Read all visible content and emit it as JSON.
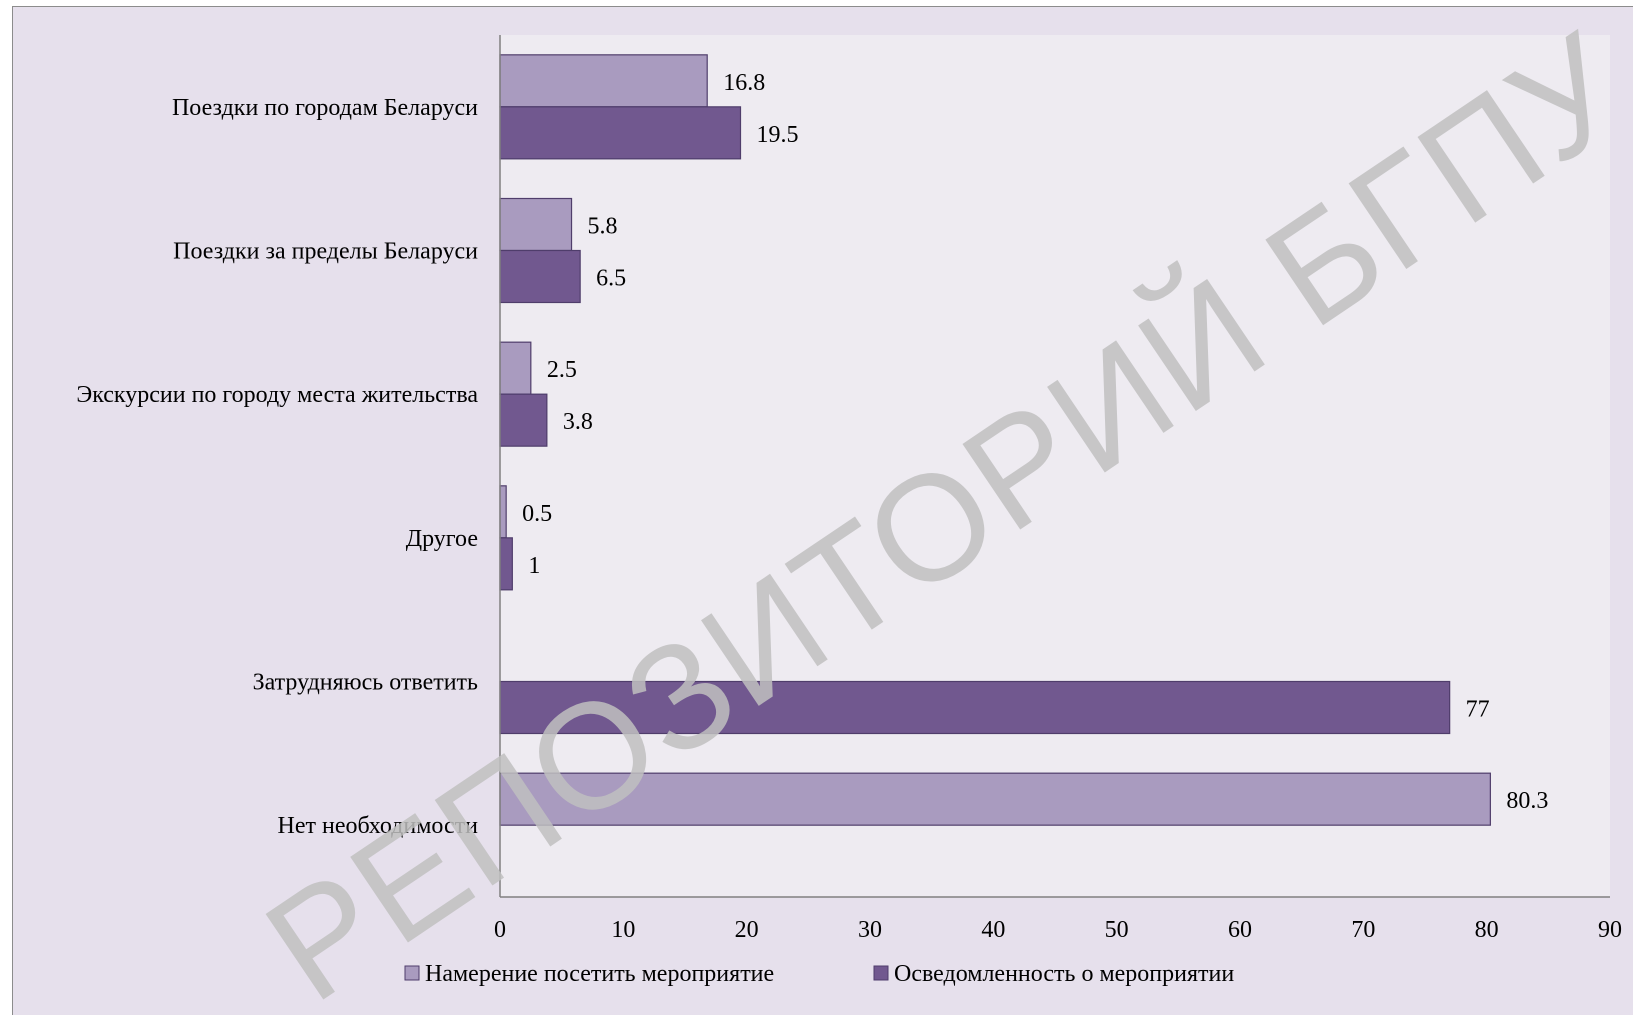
{
  "chart_data": {
    "type": "bar",
    "orientation": "horizontal",
    "categories": [
      "Поездки по городам Беларуси",
      "Поездки за пределы Беларуси",
      "Экскурсии по городу места жительства",
      "Другое",
      "Затрудняюсь ответить",
      "Нет необходимости"
    ],
    "series": [
      {
        "name": "Намерение посетить мероприятие",
        "color": "#a99bbf",
        "values": [
          16.8,
          5.8,
          2.5,
          0.5,
          null,
          80.3
        ],
        "labels": [
          "16.8",
          "5.8",
          "2.5",
          "0.5",
          "",
          "80.3"
        ]
      },
      {
        "name": "Осведомленность о мероприятии",
        "color": "#71588f",
        "values": [
          19.5,
          6.5,
          3.8,
          1,
          77,
          null
        ],
        "labels": [
          "19.5",
          "6.5",
          "3.8",
          "1",
          "77",
          ""
        ]
      }
    ],
    "xlim": [
      0,
      90
    ],
    "xticks": [
      "0",
      "10",
      "20",
      "30",
      "40",
      "50",
      "60",
      "70",
      "80",
      "90"
    ],
    "legend_position": "bottom",
    "grid": false
  },
  "watermark": {
    "text": "РЕПОЗИТОРИЙ БГПУ",
    "color": "#bfbfbf"
  },
  "colors": {
    "plot_background": "#eeebf1",
    "chart_background": "#e6e0ec",
    "bar_border": "#4f3d6b",
    "axis": "#808080"
  }
}
